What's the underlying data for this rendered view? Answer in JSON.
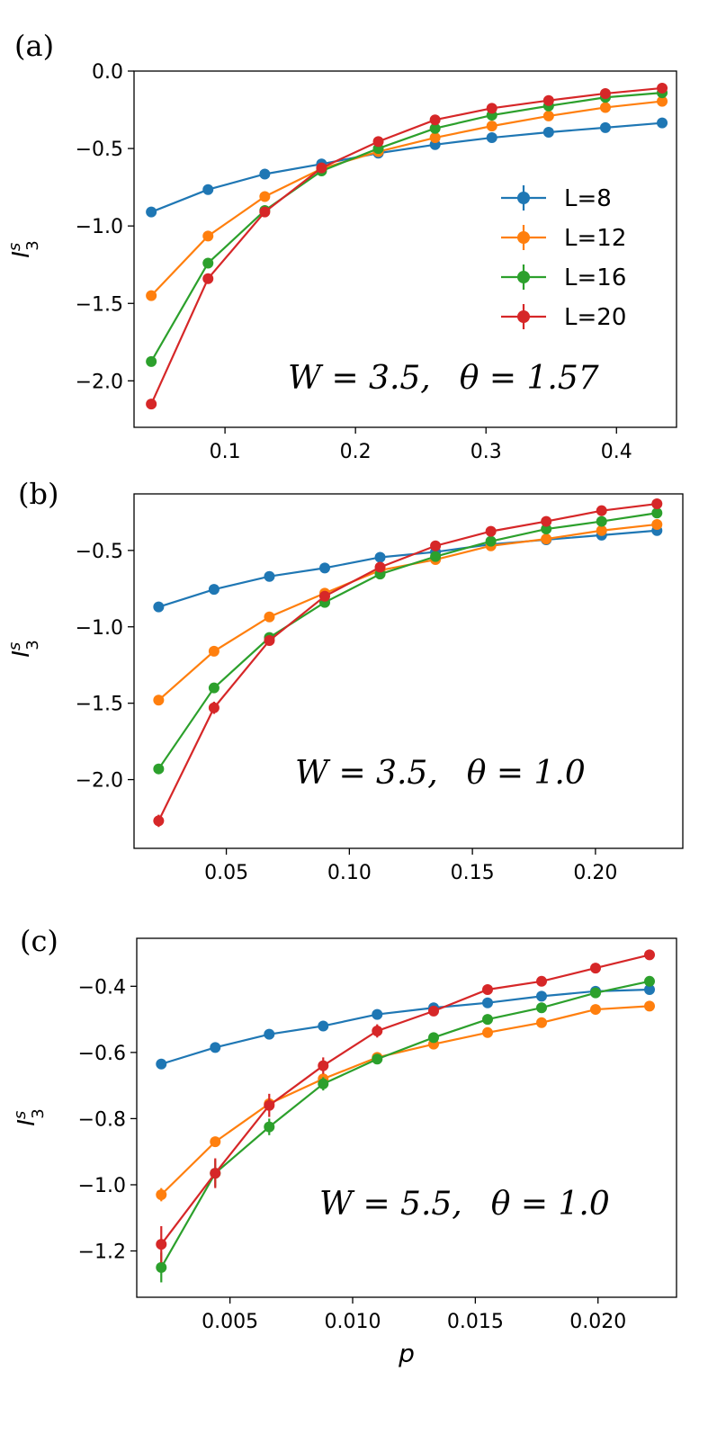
{
  "colors": {
    "L8": "#1f77b4",
    "L12": "#ff7f0e",
    "L16": "#2ca02c",
    "L20": "#d62728"
  },
  "chart_data": [
    {
      "type": "line",
      "panel_label": "(a)",
      "ylabel": "I",
      "ylabel_sup": "s",
      "ylabel_sub": "3",
      "xlabel": "",
      "annotation": {
        "W": "W = 3.5,",
        "theta": "θ = 1.57"
      },
      "xlim": [
        0.0303,
        0.446
      ],
      "ylim": [
        -2.3,
        0.0
      ],
      "xticks": [
        0.1,
        0.2,
        0.3,
        0.4
      ],
      "xtick_labels": [
        "0.1",
        "0.2",
        "0.3",
        "0.4"
      ],
      "yticks": [
        0.0,
        -0.5,
        -1.0,
        -1.5,
        -2.0
      ],
      "ytick_labels": [
        "0.0",
        "−0.5",
        "−1.0",
        "−1.5",
        "−2.0"
      ],
      "legend": {
        "position": "center-right",
        "entries": [
          "L=8",
          "L=12",
          "L=16",
          "L=20"
        ]
      },
      "x": [
        0.0435,
        0.087,
        0.1305,
        0.174,
        0.2175,
        0.261,
        0.3045,
        0.348,
        0.3915,
        0.435
      ],
      "series": [
        {
          "name": "L=8",
          "values": [
            -0.91,
            -0.765,
            -0.665,
            -0.6,
            -0.53,
            -0.475,
            -0.43,
            -0.395,
            -0.365,
            -0.335
          ],
          "errors": [
            0,
            0,
            0,
            0,
            0,
            0,
            0,
            0,
            0,
            0
          ]
        },
        {
          "name": "L=12",
          "values": [
            -1.45,
            -1.065,
            -0.81,
            -0.63,
            -0.52,
            -0.43,
            -0.355,
            -0.29,
            -0.235,
            -0.195
          ],
          "errors": [
            0,
            0,
            0,
            0,
            0,
            0,
            0,
            0,
            0,
            0
          ]
        },
        {
          "name": "L=16",
          "values": [
            -1.875,
            -1.24,
            -0.9,
            -0.645,
            -0.5,
            -0.37,
            -0.285,
            -0.225,
            -0.17,
            -0.14
          ],
          "errors": [
            0,
            0,
            0,
            0,
            0,
            0,
            0,
            0,
            0,
            0
          ]
        },
        {
          "name": "L=20",
          "values": [
            -2.15,
            -1.34,
            -0.91,
            -0.625,
            -0.455,
            -0.315,
            -0.24,
            -0.19,
            -0.145,
            -0.11
          ],
          "errors": [
            0,
            0,
            0,
            0,
            0,
            0,
            0,
            0,
            0,
            0
          ]
        }
      ]
    },
    {
      "type": "line",
      "panel_label": "(b)",
      "ylabel": "I",
      "ylabel_sup": "s",
      "ylabel_sub": "3",
      "xlabel": "",
      "annotation": {
        "W": "W = 3.5,",
        "theta": "θ = 1.0"
      },
      "xlim": [
        0.0125,
        0.2355
      ],
      "ylim": [
        -2.45,
        -0.13
      ],
      "xticks": [
        0.05,
        0.1,
        0.15,
        0.2
      ],
      "xtick_labels": [
        "0.05",
        "0.10",
        "0.15",
        "0.20"
      ],
      "yticks": [
        -0.5,
        -1.0,
        -1.5,
        -2.0
      ],
      "ytick_labels": [
        "−0.5",
        "−1.0",
        "−1.5",
        "−2.0"
      ],
      "x": [
        0.0225,
        0.045,
        0.0675,
        0.09,
        0.1125,
        0.135,
        0.1575,
        0.18,
        0.2025,
        0.225
      ],
      "series": [
        {
          "name": "L=8",
          "values": [
            -0.87,
            -0.755,
            -0.67,
            -0.615,
            -0.545,
            -0.51,
            -0.46,
            -0.43,
            -0.4,
            -0.37
          ],
          "errors": [
            0,
            0,
            0,
            0,
            0,
            0,
            0,
            0,
            0,
            0
          ]
        },
        {
          "name": "L=12",
          "values": [
            -1.48,
            -1.16,
            -0.935,
            -0.78,
            -0.63,
            -0.56,
            -0.47,
            -0.425,
            -0.37,
            -0.33
          ],
          "errors": [
            0,
            0,
            0,
            0,
            0,
            0,
            0,
            0,
            0,
            0
          ]
        },
        {
          "name": "L=16",
          "values": [
            -1.93,
            -1.4,
            -1.07,
            -0.84,
            -0.655,
            -0.54,
            -0.44,
            -0.36,
            -0.31,
            -0.255
          ],
          "errors": [
            0.015,
            0.015,
            0.01,
            0,
            0,
            0,
            0,
            0,
            0,
            0
          ]
        },
        {
          "name": "L=20",
          "values": [
            -2.27,
            -1.53,
            -1.09,
            -0.8,
            -0.61,
            -0.47,
            -0.375,
            -0.31,
            -0.24,
            -0.195
          ],
          "errors": [
            0.04,
            0.04,
            0.015,
            0.01,
            0,
            0,
            0,
            0,
            0,
            0
          ]
        }
      ]
    },
    {
      "type": "line",
      "panel_label": "(c)",
      "ylabel": "I",
      "ylabel_sup": "s",
      "ylabel_sub": "3",
      "xlabel": "p",
      "annotation": {
        "W": "W = 5.5,",
        "theta": "θ = 1.0"
      },
      "xlim": [
        0.0012,
        0.0232
      ],
      "ylim": [
        -1.34,
        -0.255
      ],
      "xticks": [
        0.005,
        0.01,
        0.015,
        0.02
      ],
      "xtick_labels": [
        "0.005",
        "0.010",
        "0.015",
        "0.020"
      ],
      "yticks": [
        -0.4,
        -0.6,
        -0.8,
        -1.0,
        -1.2
      ],
      "ytick_labels": [
        "−0.4",
        "−0.6",
        "−0.8",
        "−1.0",
        "−1.2"
      ],
      "x": [
        0.0022,
        0.0044,
        0.0066,
        0.0088,
        0.011,
        0.0133,
        0.0155,
        0.0177,
        0.0199,
        0.0221
      ],
      "series": [
        {
          "name": "L=8",
          "values": [
            -0.635,
            -0.585,
            -0.545,
            -0.52,
            -0.485,
            -0.465,
            -0.45,
            -0.43,
            -0.415,
            -0.41
          ],
          "errors": [
            0,
            0,
            0,
            0,
            0,
            0,
            0,
            0,
            0,
            0
          ]
        },
        {
          "name": "L=12",
          "values": [
            -1.03,
            -0.87,
            -0.755,
            -0.68,
            -0.615,
            -0.575,
            -0.54,
            -0.51,
            -0.47,
            -0.46
          ],
          "errors": [
            0.02,
            0.015,
            0.01,
            0.01,
            0.01,
            0,
            0,
            0,
            0,
            0
          ]
        },
        {
          "name": "L=16",
          "values": [
            -1.25,
            -0.965,
            -0.825,
            -0.695,
            -0.62,
            -0.555,
            -0.5,
            -0.465,
            -0.42,
            -0.385
          ],
          "errors": [
            0.045,
            0.04,
            0.025,
            0.02,
            0.015,
            0.01,
            0.01,
            0,
            0,
            0
          ]
        },
        {
          "name": "L=20",
          "values": [
            -1.18,
            -0.965,
            -0.76,
            -0.64,
            -0.535,
            -0.475,
            -0.41,
            -0.385,
            -0.345,
            -0.305
          ],
          "errors": [
            0.055,
            0.045,
            0.035,
            0.025,
            0.02,
            0.01,
            0,
            0,
            0,
            0
          ]
        }
      ]
    }
  ]
}
